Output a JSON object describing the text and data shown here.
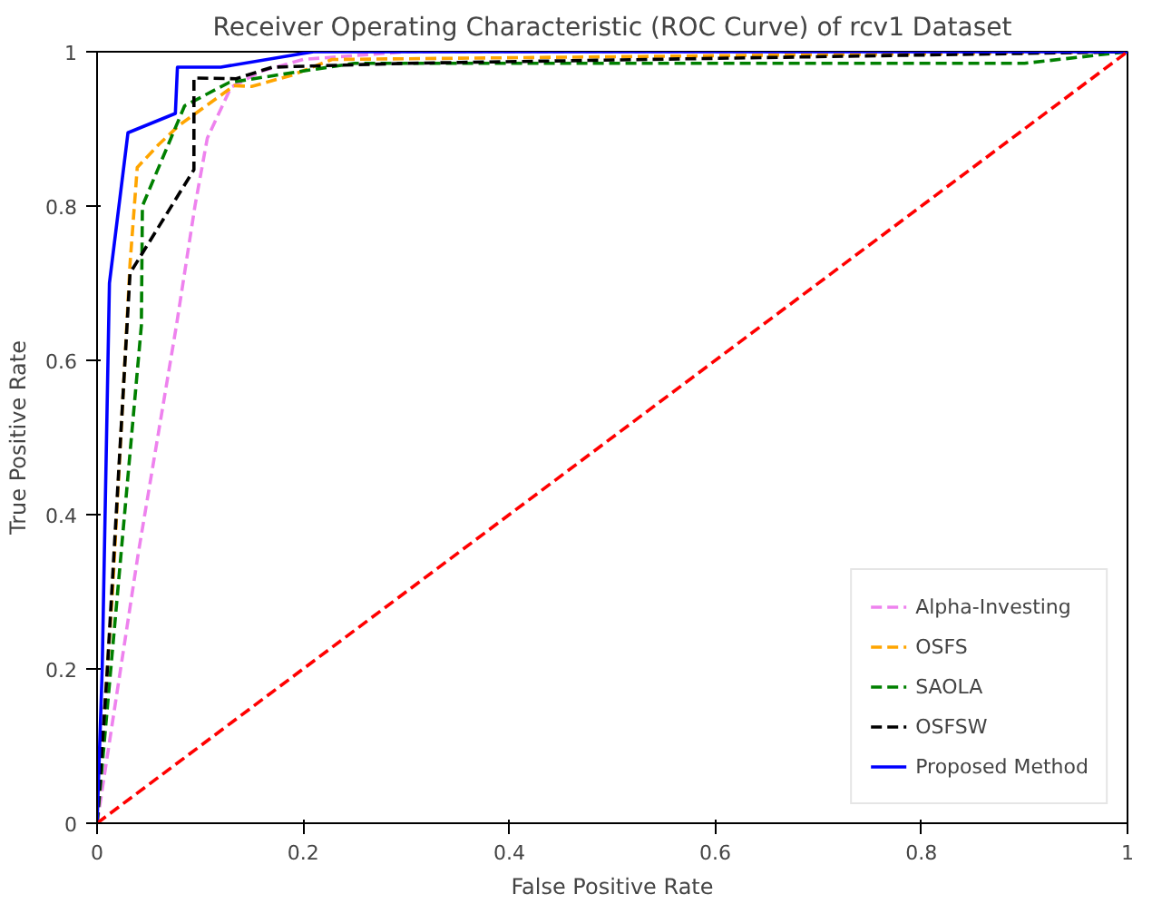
{
  "chart_data": {
    "type": "line",
    "title": "Receiver Operating Characteristic (ROC Curve) of rcv1 Dataset",
    "xlabel": "False Positive Rate",
    "ylabel": "True Positive Rate",
    "xlim": [
      0,
      1
    ],
    "ylim": [
      0,
      1
    ],
    "xticks": [
      0,
      0.2,
      0.4,
      0.6,
      0.8,
      1
    ],
    "yticks": [
      0,
      0.2,
      0.4,
      0.6,
      0.8,
      1
    ],
    "grid": false,
    "legend": "bottom right",
    "marker": "none",
    "series": [
      {
        "name": "Alpha-Investing",
        "color": "#ee82ee",
        "line_style": "dashed",
        "x": [
          0,
          0.04,
          0.077,
          0.095,
          0.107,
          0.13,
          0.16,
          0.2,
          0.3,
          1
        ],
        "values": [
          0,
          0.35,
          0.645,
          0.8,
          0.888,
          0.954,
          0.975,
          0.99,
          1,
          1
        ]
      },
      {
        "name": "OSFS",
        "color": "#ffa500",
        "line_style": "dashed",
        "x": [
          0,
          0.015,
          0.032,
          0.039,
          0.06,
          0.08,
          0.133,
          0.15,
          0.19,
          0.228,
          1
        ],
        "values": [
          0,
          0.3,
          0.725,
          0.85,
          0.88,
          0.905,
          0.956,
          0.955,
          0.97,
          0.99,
          1
        ]
      },
      {
        "name": "SAOLA",
        "color": "#008000",
        "line_style": "dashed",
        "x": [
          0,
          0.02,
          0.043,
          0.044,
          0.085,
          0.128,
          0.2,
          0.25,
          0.5,
          0.9,
          1
        ],
        "values": [
          0,
          0.3,
          0.645,
          0.8,
          0.93,
          0.96,
          0.975,
          0.985,
          0.985,
          0.985,
          1
        ]
      },
      {
        "name": "OSFSW",
        "color": "#000000",
        "line_style": "dashed",
        "x": [
          0,
          0.01,
          0.032,
          0.094,
          0.094,
          0.135,
          0.17,
          0.3,
          1
        ],
        "values": [
          0,
          0.2,
          0.713,
          0.847,
          0.966,
          0.965,
          0.98,
          0.985,
          1
        ]
      },
      {
        "name": "Proposed Method",
        "color": "#0000ff",
        "line_style": "solid",
        "x": [
          0,
          0.005,
          0.012,
          0.03,
          0.076,
          0.078,
          0.12,
          0.21,
          1
        ],
        "values": [
          0,
          0.2,
          0.7,
          0.895,
          0.92,
          0.98,
          0.98,
          1,
          1
        ]
      },
      {
        "color": "#ff0000",
        "line_style": "dashed",
        "x": [
          0,
          1
        ],
        "values": [
          0,
          1
        ]
      }
    ]
  }
}
